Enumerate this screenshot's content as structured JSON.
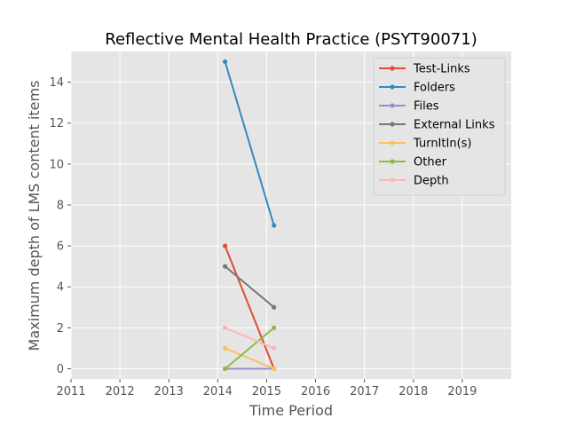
{
  "chart_data": {
    "type": "line",
    "title": "Reflective Mental Health Practice (PSYT90071)",
    "xlabel": "Time Period",
    "ylabel": "Maximum depth of LMS content items",
    "xlim": [
      2011,
      2020
    ],
    "ylim": [
      -0.5,
      15.5
    ],
    "x_ticks": [
      2011,
      2012,
      2013,
      2014,
      2015,
      2016,
      2017,
      2018,
      2019
    ],
    "y_ticks": [
      0,
      2,
      4,
      6,
      8,
      10,
      12,
      14
    ],
    "grid": true,
    "legend_position": "top-right",
    "x": [
      2014.15,
      2015.15
    ],
    "series": [
      {
        "name": "Test-Links",
        "color": "#e24a33",
        "values": [
          6,
          0
        ]
      },
      {
        "name": "Folders",
        "color": "#348abd",
        "values": [
          15,
          7
        ]
      },
      {
        "name": "Files",
        "color": "#988ed5",
        "values": [
          0,
          0
        ]
      },
      {
        "name": "External Links",
        "color": "#777777",
        "values": [
          5,
          3
        ]
      },
      {
        "name": "TurnItIn(s)",
        "color": "#fbc15e",
        "values": [
          1,
          0
        ]
      },
      {
        "name": "Other",
        "color": "#8eba42",
        "values": [
          0,
          2
        ]
      },
      {
        "name": "Depth",
        "color": "#ffb5b8",
        "values": [
          2,
          1
        ]
      }
    ]
  }
}
